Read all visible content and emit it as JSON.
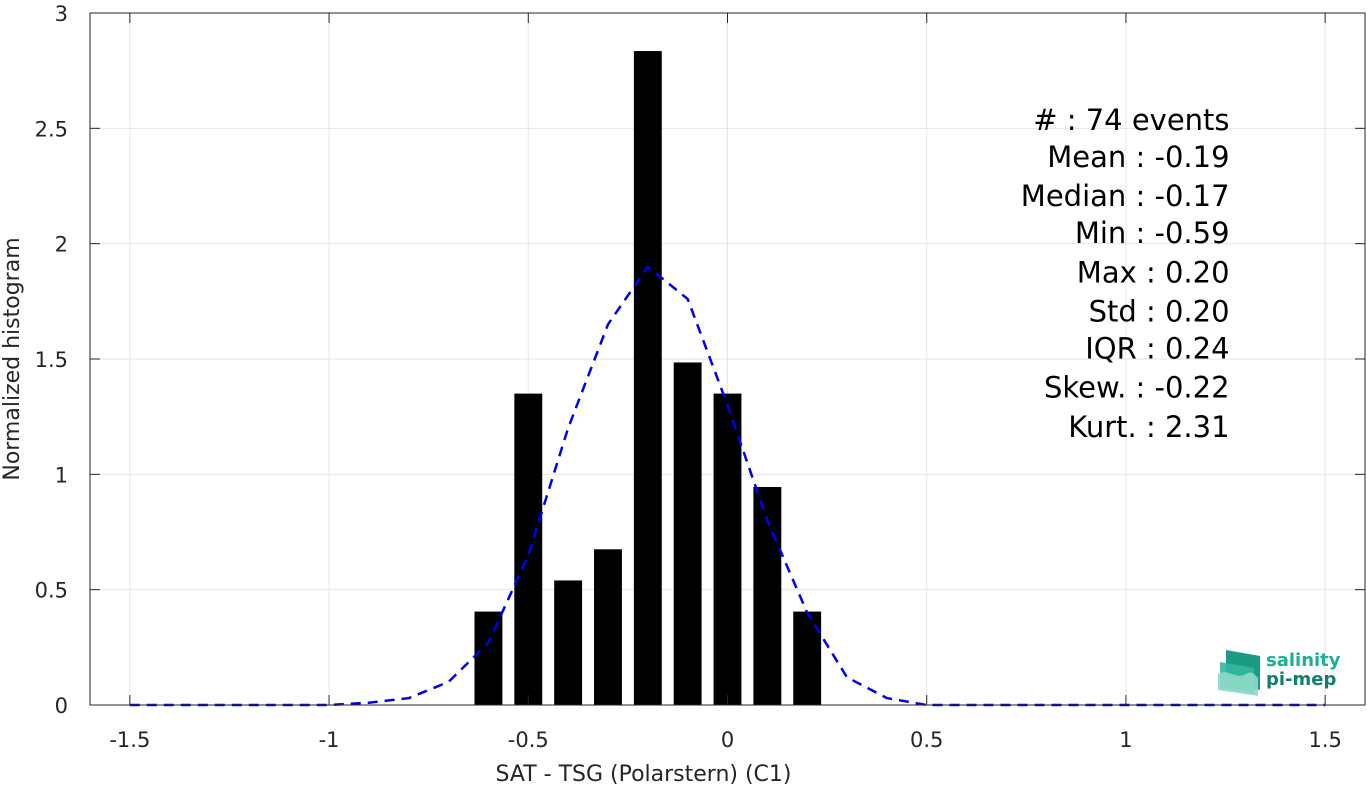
{
  "chart_data": {
    "type": "bar",
    "xlabel": "SAT - TSG (Polarstern) (C1)",
    "ylabel": "Normalized histogram",
    "xlim": [
      -1.6,
      1.6
    ],
    "ylim": [
      0,
      3
    ],
    "grid": true,
    "x_ticks": [
      -1.5,
      -1,
      -0.5,
      0,
      0.5,
      1,
      1.5
    ],
    "x_tick_labels": [
      "-1.5",
      "-1",
      "-0.5",
      "0",
      "0.5",
      "1",
      "1.5"
    ],
    "y_ticks": [
      0,
      0.5,
      1,
      1.5,
      2,
      2.5,
      3
    ],
    "y_tick_labels": [
      "0",
      "0.5",
      "1",
      "1.5",
      "2",
      "2.5",
      "3"
    ],
    "bar_width": 0.07,
    "bar_color": "#000000",
    "bars": [
      {
        "x": -0.6,
        "y": 0.405
      },
      {
        "x": -0.5,
        "y": 1.35
      },
      {
        "x": -0.4,
        "y": 0.54
      },
      {
        "x": -0.3,
        "y": 0.675
      },
      {
        "x": -0.2,
        "y": 2.835
      },
      {
        "x": -0.1,
        "y": 1.485
      },
      {
        "x": 0.0,
        "y": 1.35
      },
      {
        "x": 0.1,
        "y": 0.945
      },
      {
        "x": 0.2,
        "y": 0.405
      }
    ],
    "fit_curve": {
      "style": "dashed",
      "color": "#0000ee",
      "x": [
        -1.5,
        -1.4,
        -1.3,
        -1.2,
        -1.1,
        -1.0,
        -0.9,
        -0.8,
        -0.7,
        -0.6,
        -0.5,
        -0.4,
        -0.3,
        -0.2,
        -0.1,
        0.0,
        0.1,
        0.2,
        0.3,
        0.4,
        0.5,
        0.6,
        0.7,
        0.8,
        0.9,
        1.0,
        1.1,
        1.2,
        1.3,
        1.4,
        1.5
      ],
      "y": [
        0,
        0,
        0,
        0,
        0,
        0,
        0.01,
        0.03,
        0.1,
        0.27,
        0.65,
        1.2,
        1.65,
        1.9,
        1.76,
        1.3,
        0.8,
        0.4,
        0.12,
        0.03,
        0,
        0,
        0,
        0,
        0,
        0,
        0,
        0,
        0,
        0,
        0
      ]
    },
    "stats": [
      {
        "text": "#  : 74 events",
        "x": -0.19,
        "y": 2.54
      },
      {
        "text": "Mean : -0.19",
        "x": -0.19,
        "y": 2.38
      },
      {
        "text": "Median : -0.17",
        "x": -0.19,
        "y": 2.21
      },
      {
        "text": "Min : -0.59",
        "x": -0.19,
        "y": 2.05
      },
      {
        "text": "Max : 0.20",
        "x": -0.19,
        "y": 1.88
      },
      {
        "text": "Std : 0.20",
        "x": -0.19,
        "y": 1.71
      },
      {
        "text": "IQR : 0.24",
        "x": -0.19,
        "y": 1.55
      },
      {
        "text": "Skew. : -0.22",
        "x": -0.19,
        "y": 1.38
      },
      {
        "text": "Kurt. : 2.31",
        "x": -0.19,
        "y": 1.21
      }
    ]
  },
  "logo": {
    "line1": "salinity",
    "line2": "pi-mep",
    "color": "#1fae96"
  }
}
